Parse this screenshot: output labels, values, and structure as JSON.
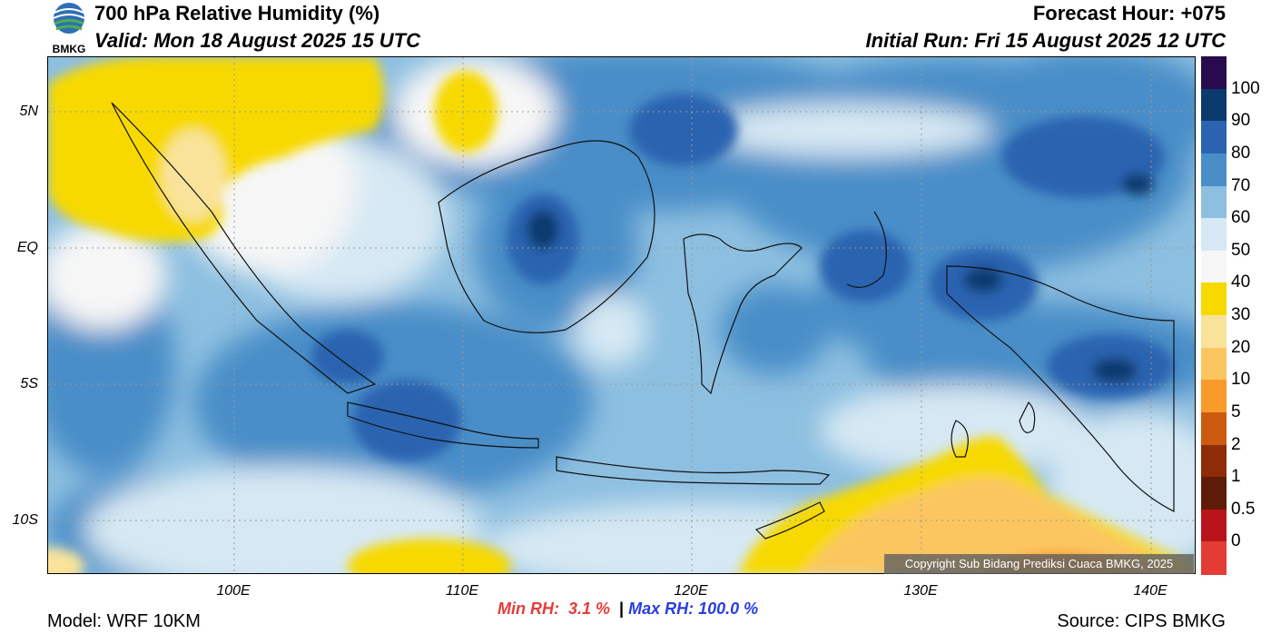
{
  "header": {
    "title": "700 hPa Relative Humidity (%)",
    "valid": "Valid: Mon 18 August 2025 15 UTC",
    "forecast_hour": "Forecast Hour: +075",
    "initial_run": "Initial Run: Fri 15 August 2025 12 UTC",
    "logo_text": "BMKG"
  },
  "axes": {
    "lat_ticks": [
      "5N",
      "EQ",
      "5S",
      "10S"
    ],
    "lon_ticks": [
      "100E",
      "110E",
      "120E",
      "130E",
      "140E"
    ]
  },
  "colorbar": {
    "labels": [
      "100",
      "90",
      "80",
      "70",
      "60",
      "50",
      "40",
      "30",
      "20",
      "10",
      "5",
      "2",
      "1",
      "0.5",
      "0"
    ],
    "colors": [
      "#2a0a4e",
      "#0b3a6e",
      "#2a64b0",
      "#4a8ec8",
      "#8dbfe0",
      "#d6e8f3",
      "#f6f6f6",
      "#f7d900",
      "#f9e39a",
      "#fbc660",
      "#f99a2a",
      "#cc5a10",
      "#8e2c08",
      "#5e1c08",
      "#b8141a",
      "#e23c34"
    ]
  },
  "stats": {
    "min_label": "Min RH:",
    "min_value": "3.1 %",
    "separator": "|",
    "max_label": "Max RH:",
    "max_value": "100.0 %",
    "min_color": "#e43c3c",
    "max_color": "#2a3ee0"
  },
  "footer": {
    "model": "Model: WRF 10KM",
    "source": "Source: CIPS BMKG",
    "copyright": "Copyright Sub Bidang Prediksi Cuaca BMKG, 2025"
  }
}
